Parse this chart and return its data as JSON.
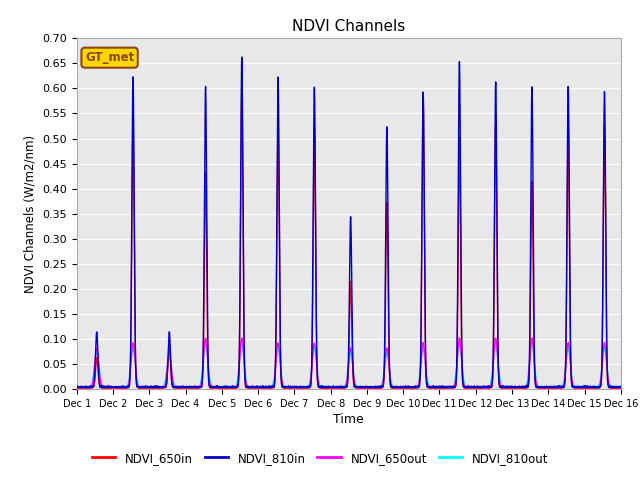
{
  "title": "NDVI Channels",
  "xlabel": "Time",
  "ylabel": "NDVI Channels (W/m2/nm)",
  "ylim": [
    0.0,
    0.7
  ],
  "yticks": [
    0.0,
    0.05,
    0.1,
    0.15,
    0.2,
    0.25,
    0.3,
    0.35,
    0.4,
    0.45,
    0.5,
    0.55,
    0.6,
    0.65,
    0.7
  ],
  "xtick_labels": [
    "Dec 1",
    "Dec 2",
    "Dec 3",
    "Dec 4",
    "Dec 5",
    "Dec 6",
    "Dec 7",
    "Dec 8",
    "Dec 9",
    "Dec 10",
    "Dec 11",
    "Dec 12",
    "Dec 13",
    "Dec 14",
    "Dec 15",
    "Dec 16"
  ],
  "legend_entries": [
    "NDVI_650in",
    "NDVI_810in",
    "NDVI_650out",
    "NDVI_810out"
  ],
  "colors": {
    "NDVI_650in": "#FF0000",
    "NDVI_810in": "#0000CC",
    "NDVI_650out": "#FF00FF",
    "NDVI_810out": "#00FFFF"
  },
  "line_width": 1.0,
  "plot_bg_color": "#E8E8E8",
  "peak_810in": [
    0.11,
    0.62,
    0.11,
    0.6,
    0.66,
    0.62,
    0.6,
    0.34,
    0.52,
    0.59,
    0.65,
    0.61,
    0.6,
    0.6,
    0.59
  ],
  "peak_650in": [
    0.06,
    0.53,
    0.09,
    0.43,
    0.59,
    0.52,
    0.52,
    0.21,
    0.37,
    0.58,
    0.5,
    0.53,
    0.41,
    0.52,
    0.52
  ],
  "peak_650out": [
    0.08,
    0.09,
    0.07,
    0.1,
    0.1,
    0.09,
    0.09,
    0.08,
    0.08,
    0.09,
    0.1,
    0.1,
    0.1,
    0.09,
    0.09
  ],
  "peak_810out": [
    0.07,
    0.08,
    0.06,
    0.09,
    0.09,
    0.08,
    0.08,
    0.07,
    0.07,
    0.08,
    0.09,
    0.09,
    0.09,
    0.08,
    0.08
  ],
  "gt_met_label": "GT_met",
  "gt_met_color": "#8B4513",
  "gt_met_bg": "#FFD700"
}
